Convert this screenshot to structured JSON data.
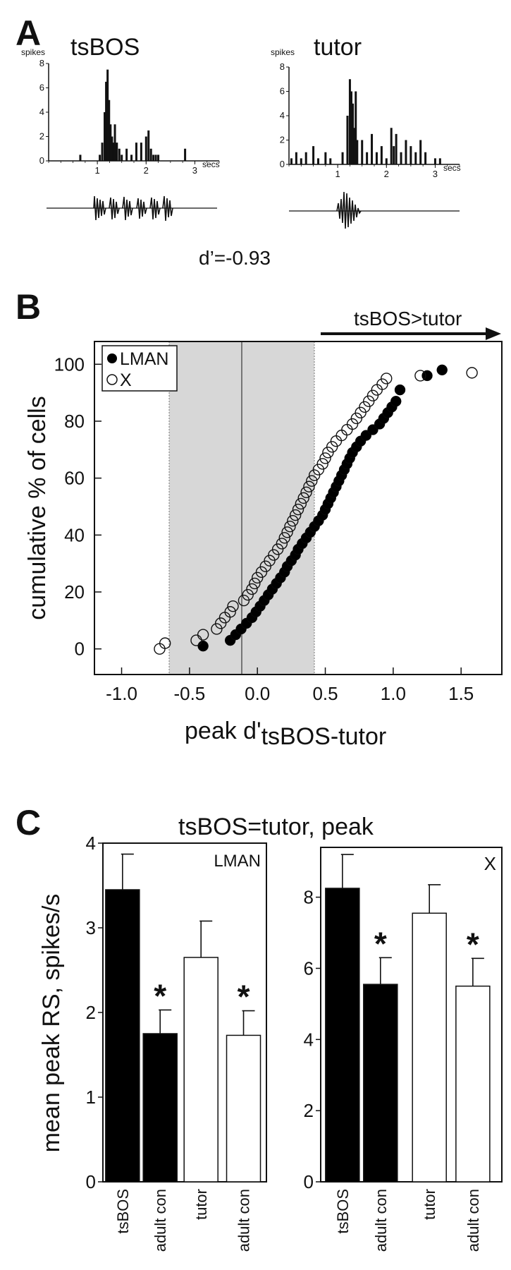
{
  "panels": {
    "a": {
      "letter": "A",
      "left_title": "tsBOS",
      "right_title": "tutor",
      "ylabel": "spikes",
      "xunit": "secs",
      "dprime": "d’=-0.93"
    },
    "b": {
      "letter": "B",
      "arrow_label": "tsBOS>tutor",
      "legend_lman": "LMAN",
      "legend_x": "X",
      "ylabel": "cumulative % of cells",
      "xlabel_main": "peak d'",
      "xlabel_sub": "tsBOS-tutor"
    },
    "c": {
      "letter": "C",
      "title": "tsBOS=tutor, peak",
      "ylabel": "mean peak RS, spikes/s",
      "star": "*"
    }
  },
  "chart_data": [
    {
      "id": "A-tsBOS",
      "type": "bar",
      "title": "tsBOS",
      "ylabel": "spikes",
      "xunit": "secs",
      "xlim": [
        0,
        3.5
      ],
      "ylim": [
        0,
        8
      ],
      "xticks": [
        1,
        2,
        3
      ],
      "yticks": [
        0,
        2,
        4,
        6,
        8
      ],
      "x": [
        0.65,
        1.05,
        1.1,
        1.15,
        1.18,
        1.21,
        1.24,
        1.27,
        1.3,
        1.33,
        1.36,
        1.4,
        1.45,
        1.5,
        1.6,
        1.7,
        1.8,
        1.9,
        2.0,
        2.05,
        2.1,
        2.15,
        2.2,
        2.25,
        2.8
      ],
      "values": [
        0.5,
        0.5,
        1.5,
        4,
        6.5,
        7.5,
        5,
        3,
        2,
        1.5,
        3,
        1.5,
        1,
        0.5,
        1,
        0.5,
        1.5,
        1.5,
        2,
        2.5,
        1,
        0.5,
        0.5,
        0.5,
        1
      ]
    },
    {
      "id": "A-tutor",
      "type": "bar",
      "title": "tutor",
      "ylabel": "spikes",
      "xunit": "secs",
      "xlim": [
        0,
        3.5
      ],
      "ylim": [
        0,
        8
      ],
      "xticks": [
        1,
        2,
        3
      ],
      "yticks": [
        0,
        2,
        4,
        6,
        8
      ],
      "x": [
        0.05,
        0.15,
        0.25,
        0.35,
        0.5,
        0.6,
        0.75,
        0.85,
        1.1,
        1.2,
        1.25,
        1.28,
        1.31,
        1.34,
        1.37,
        1.4,
        1.5,
        1.6,
        1.7,
        1.8,
        1.9,
        2.0,
        2.1,
        2.15,
        2.2,
        2.3,
        2.4,
        2.5,
        2.6,
        2.7,
        2.8,
        3.0,
        3.1
      ],
      "values": [
        0.5,
        1,
        0.5,
        1,
        1.5,
        0.5,
        1,
        0.5,
        1,
        4,
        7,
        6,
        5,
        3,
        6,
        2,
        2,
        1,
        2.5,
        1,
        1.5,
        0.5,
        3,
        1.5,
        2.5,
        1,
        2,
        1.5,
        1,
        2,
        1,
        0.5,
        0.5
      ]
    },
    {
      "id": "B",
      "type": "scatter",
      "xlabel": "peak d'tsBOS-tutor",
      "ylabel": "cumulative % of cells",
      "xlim": [
        -1.2,
        1.8
      ],
      "ylim": [
        -9,
        108
      ],
      "xticks": [
        -1.0,
        -0.5,
        0.0,
        0.5,
        1.0,
        1.5
      ],
      "xtick_labels": [
        "-1.0",
        "-0.5",
        "0.0",
        "0.5",
        "1.0",
        "1.5"
      ],
      "yticks": [
        0,
        20,
        40,
        60,
        80,
        100
      ],
      "shaded_region": [
        -0.5,
        0.5
      ],
      "arrow_label": "tsBOS>tutor",
      "legend": [
        "LMAN",
        "X"
      ],
      "series": [
        {
          "name": "LMAN",
          "marker": "filled",
          "x": [
            -0.4,
            -0.2,
            -0.16,
            -0.12,
            -0.08,
            -0.04,
            -0.01,
            0.02,
            0.05,
            0.08,
            0.11,
            0.14,
            0.17,
            0.2,
            0.22,
            0.25,
            0.28,
            0.3,
            0.33,
            0.36,
            0.39,
            0.42,
            0.45,
            0.48,
            0.5,
            0.52,
            0.54,
            0.56,
            0.58,
            0.6,
            0.62,
            0.64,
            0.66,
            0.68,
            0.7,
            0.73,
            0.76,
            0.8,
            0.85,
            0.9,
            0.93,
            0.96,
            0.99,
            1.02,
            1.05,
            1.25,
            1.36
          ],
          "y": [
            1,
            3,
            5,
            7,
            9,
            11,
            13,
            15,
            17,
            19,
            21,
            23,
            25,
            27,
            29,
            31,
            33,
            35,
            37,
            39,
            41,
            43,
            45,
            47,
            49,
            51,
            53,
            55,
            57,
            59,
            61,
            63,
            65,
            67,
            69,
            71,
            73,
            75,
            77,
            79,
            81,
            83,
            85,
            87,
            91,
            96,
            98
          ]
        },
        {
          "name": "X",
          "marker": "open",
          "x": [
            -0.72,
            -0.68,
            -0.45,
            -0.4,
            -0.3,
            -0.27,
            -0.24,
            -0.2,
            -0.18,
            -0.1,
            -0.07,
            -0.04,
            -0.02,
            0.0,
            0.03,
            0.06,
            0.09,
            0.12,
            0.15,
            0.18,
            0.2,
            0.22,
            0.24,
            0.26,
            0.28,
            0.3,
            0.32,
            0.34,
            0.36,
            0.38,
            0.4,
            0.42,
            0.45,
            0.48,
            0.5,
            0.52,
            0.55,
            0.58,
            0.62,
            0.66,
            0.7,
            0.73,
            0.76,
            0.79,
            0.82,
            0.85,
            0.88,
            0.92,
            0.95,
            1.2,
            1.58
          ],
          "y": [
            0,
            2,
            3,
            5,
            7,
            9,
            11,
            13,
            15,
            17,
            19,
            21,
            23,
            25,
            27,
            29,
            31,
            33,
            35,
            37,
            39,
            41,
            43,
            45,
            47,
            49,
            51,
            53,
            55,
            57,
            59,
            61,
            63,
            65,
            67,
            69,
            71,
            73,
            75,
            77,
            79,
            81,
            83,
            85,
            87,
            89,
            91,
            93,
            95,
            96,
            97
          ]
        }
      ]
    },
    {
      "id": "C-LMAN",
      "type": "bar",
      "title": "LMAN",
      "ylabel": "mean peak RS, spikes/s",
      "ylim": [
        0,
        4
      ],
      "yticks": [
        0,
        1,
        2,
        3,
        4
      ],
      "categories": [
        "tsBOS",
        "adult con",
        "tutor",
        "adult con"
      ],
      "values": [
        3.45,
        1.75,
        2.65,
        1.73
      ],
      "errors": [
        0.42,
        0.28,
        0.43,
        0.29
      ],
      "fills": [
        "#000000",
        "#000000",
        "#ffffff",
        "#ffffff"
      ],
      "significant": [
        false,
        true,
        false,
        true
      ]
    },
    {
      "id": "C-X",
      "type": "bar",
      "title": "X",
      "ylim": [
        0,
        9.4
      ],
      "yticks": [
        0,
        2,
        4,
        6,
        8
      ],
      "categories": [
        "tsBOS",
        "adult con",
        "tutor",
        "adult con"
      ],
      "values": [
        8.25,
        5.55,
        7.55,
        5.5
      ],
      "errors": [
        0.95,
        0.75,
        0.8,
        0.78
      ],
      "fills": [
        "#000000",
        "#000000",
        "#ffffff",
        "#ffffff"
      ],
      "significant": [
        false,
        true,
        false,
        true
      ]
    }
  ]
}
